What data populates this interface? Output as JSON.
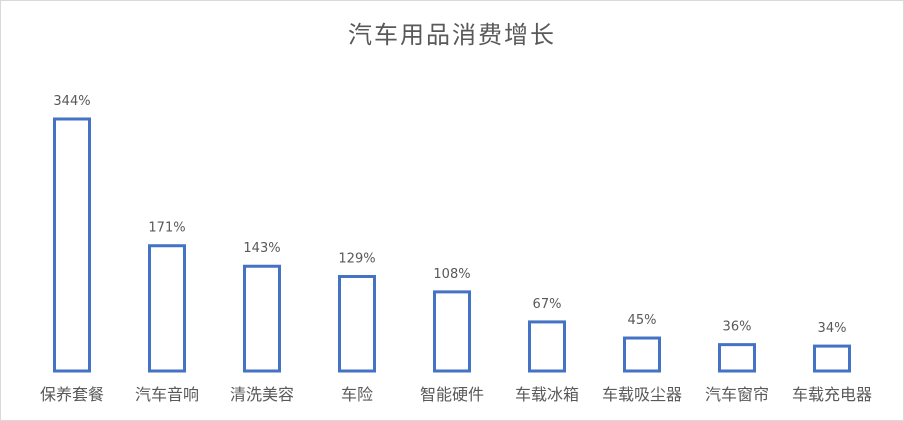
{
  "chart_data": {
    "type": "bar",
    "title": "汽车用品消费增长",
    "xlabel": "",
    "ylabel": "",
    "categories": [
      "保养套餐",
      "汽车音响",
      "清洗美容",
      "车险",
      "智能硬件",
      "车载冰箱",
      "车载吸尘器",
      "汽车窗帘",
      "车载充电器"
    ],
    "values": [
      344,
      171,
      143,
      129,
      108,
      67,
      45,
      36,
      34
    ],
    "value_labels": [
      "344%",
      "171%",
      "143%",
      "129%",
      "108%",
      "67%",
      "45%",
      "36%",
      "34%"
    ],
    "ylim": [
      0,
      344
    ],
    "grid": false,
    "legend": "none",
    "bar_stroke_color": "#4472c4",
    "bar_fill_color": "#ffffff",
    "label_color": "#595959"
  }
}
